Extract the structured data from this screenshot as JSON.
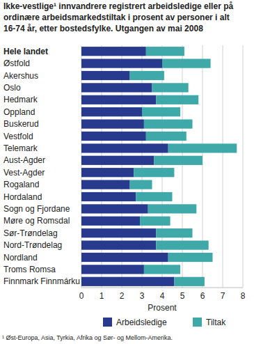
{
  "chart_data": {
    "type": "bar",
    "orientation": "horizontal",
    "stacked": true,
    "grid": true,
    "legend": "bottom",
    "title": "Ikke-vestlige¹ innvandrere registrert arbeidsledige eller på ordinære arbeidsmarkedstiltak i prosent av personer i alt 16-74 år, etter bostedsfylke. Utgangen av mai 2008",
    "xlabel": "Prosent",
    "annotations": [
      "¹ Øst-Europa, Asia, Tyrkia, Afrika og Sør- og Mellom-Amerika."
    ],
    "categories": [
      "Hele landet",
      "Østfold",
      "Akershus",
      "Oslo",
      "Hedmark",
      "Oppland",
      "Buskerud",
      "Vestfold",
      "Telemark",
      "Aust-Agder",
      "Vest-Agder",
      "Rogaland",
      "Hordaland",
      "Sogn og Fjordane",
      "Møre og Romsdal",
      "Sør-Trøndelag",
      "Nord-Trøndelag",
      "Nordland",
      "Troms Romsa",
      "Finnmark Finnmárku"
    ],
    "series": [
      {
        "name": "Arbeidsledige",
        "color": "#283a8e",
        "values": [
          3.2,
          4.0,
          2.4,
          3.5,
          3.7,
          3.0,
          3.1,
          3.2,
          4.3,
          3.6,
          2.6,
          2.4,
          2.7,
          3.3,
          2.9,
          3.7,
          3.7,
          4.3,
          3.1,
          4.6
        ]
      },
      {
        "name": "Tiltak",
        "color": "#3fa8a8",
        "values": [
          1.9,
          2.4,
          1.7,
          1.8,
          2.1,
          1.9,
          2.4,
          2.0,
          3.4,
          2.4,
          2.0,
          1.1,
          1.8,
          2.4,
          1.5,
          1.8,
          2.6,
          2.2,
          1.8,
          1.5
        ]
      }
    ],
    "xlim": [
      0,
      8
    ],
    "xticks": [
      0,
      1,
      2,
      3,
      4,
      5,
      6,
      7,
      8
    ]
  }
}
